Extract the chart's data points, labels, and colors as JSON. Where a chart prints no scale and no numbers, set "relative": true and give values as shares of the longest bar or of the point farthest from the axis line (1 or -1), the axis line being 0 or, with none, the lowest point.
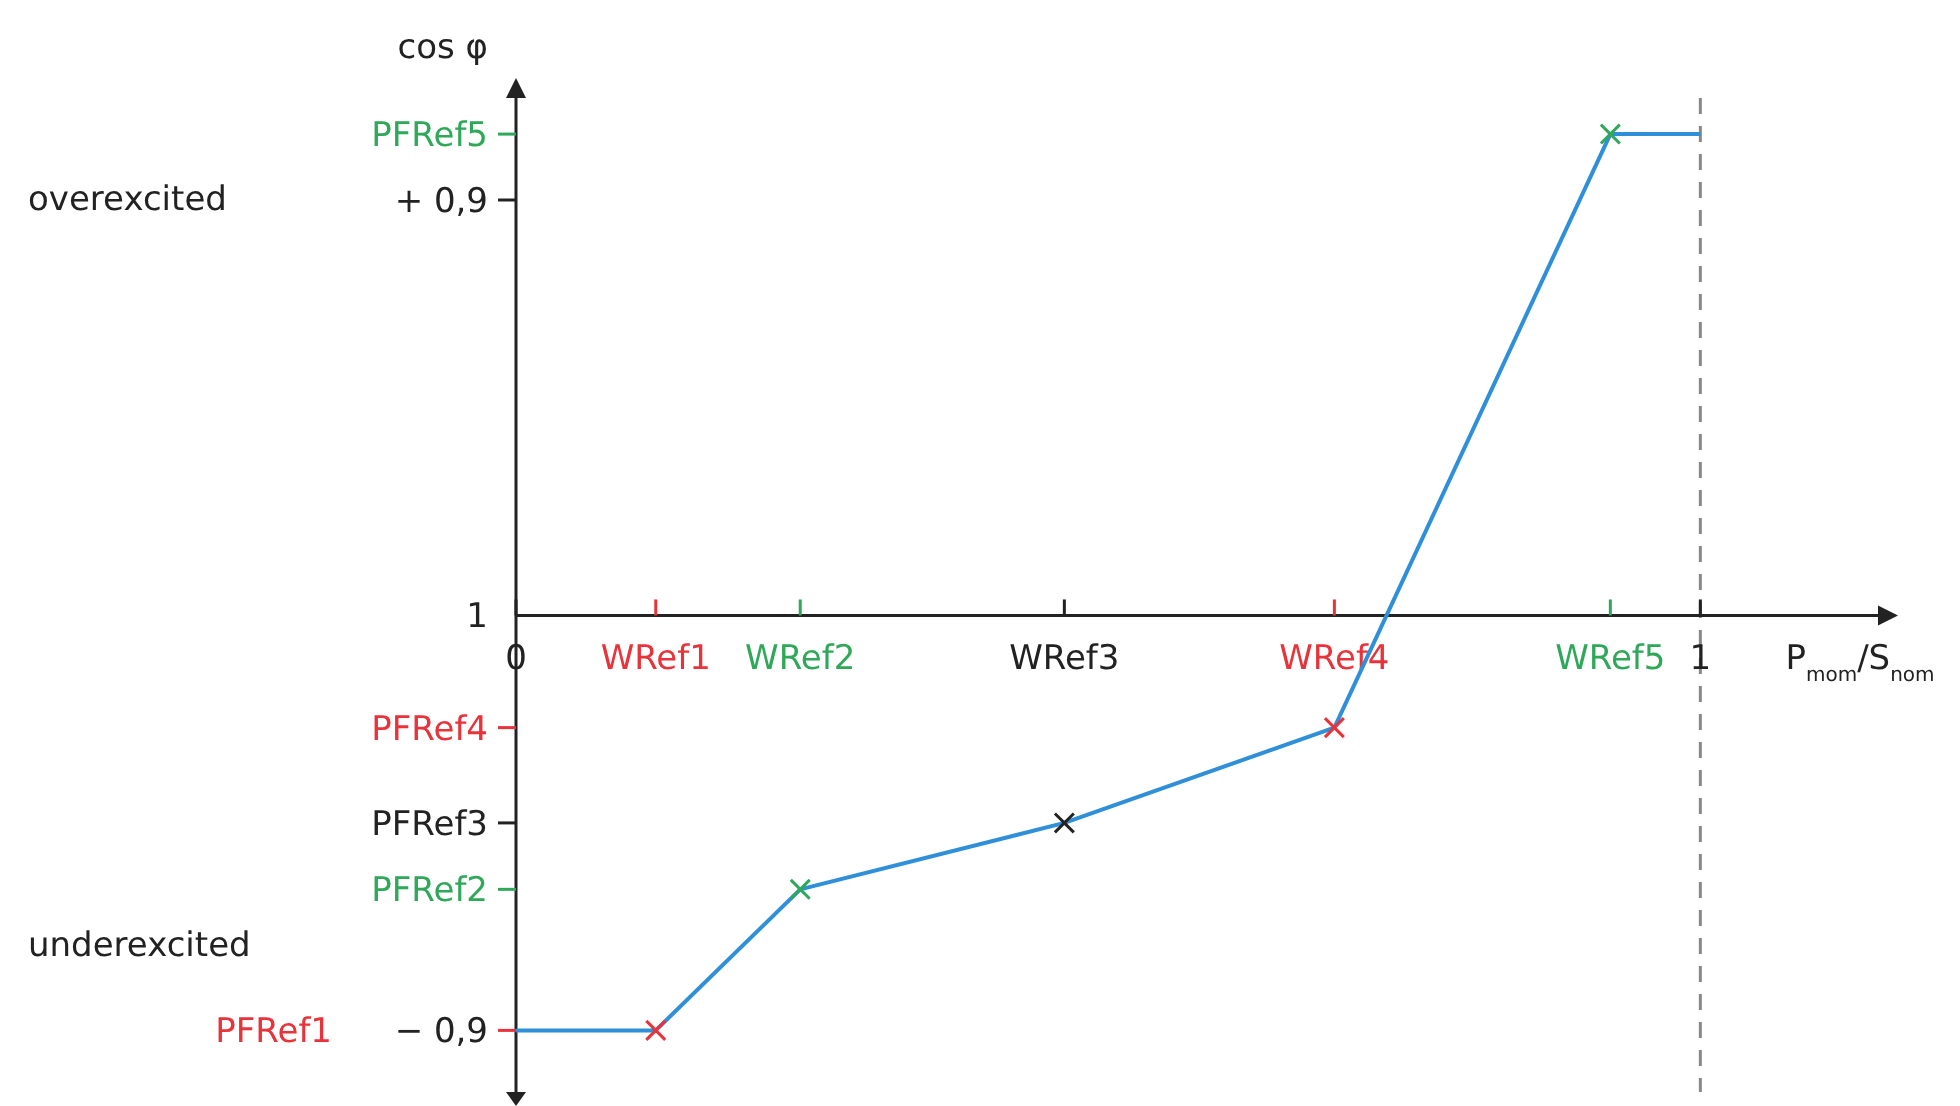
{
  "chart_data": {
    "type": "line",
    "relative": true,
    "ylabel": "cos φ",
    "xlabel": "P$_{mom}$/S$_{nom}$",
    "annotations": [
      "overexcited",
      "underexcited",
      "PFRef5",
      "+ 0,9",
      "1",
      "PFRef4",
      "PFRef3",
      "PFRef2",
      "− 0,9",
      "PFRef1"
    ],
    "xlim": [
      0,
      1.15
    ],
    "xticks": [
      {
        "value": 0,
        "label": "0"
      },
      {
        "value": 0.118,
        "label": "WRef1"
      },
      {
        "value": 0.24,
        "label": "WRef2"
      },
      {
        "value": 0.463,
        "label": "WRef3"
      },
      {
        "value": 0.691,
        "label": "WRef4"
      },
      {
        "value": 0.924,
        "label": "WRef5"
      },
      {
        "value": 1,
        "label": "1"
      }
    ],
    "grid": false,
    "ref_lines": [
      {
        "axis": "x",
        "value": 1,
        "line_style": "dashed",
        "color": "#888888"
      }
    ],
    "series": [
      {
        "type": "line",
        "color": "#2f8fd8",
        "marker": "none",
        "x": [
          0,
          0.118,
          0.24,
          0.463,
          0.691,
          0.924,
          1
        ],
        "values": [
          -0.862,
          -0.862,
          -0.569,
          -0.431,
          -0.233,
          1,
          1
        ]
      },
      {
        "type": "scatter",
        "marker": "cross",
        "x": [
          0.118,
          0.24,
          0.463,
          0.691,
          0.924
        ],
        "values": [
          -0.862,
          -0.569,
          -0.431,
          -0.233,
          1
        ],
        "colors": [
          "#e8333a",
          "#2fa85a",
          "#222222",
          "#e8333a",
          "#2fa85a"
        ]
      }
    ]
  }
}
